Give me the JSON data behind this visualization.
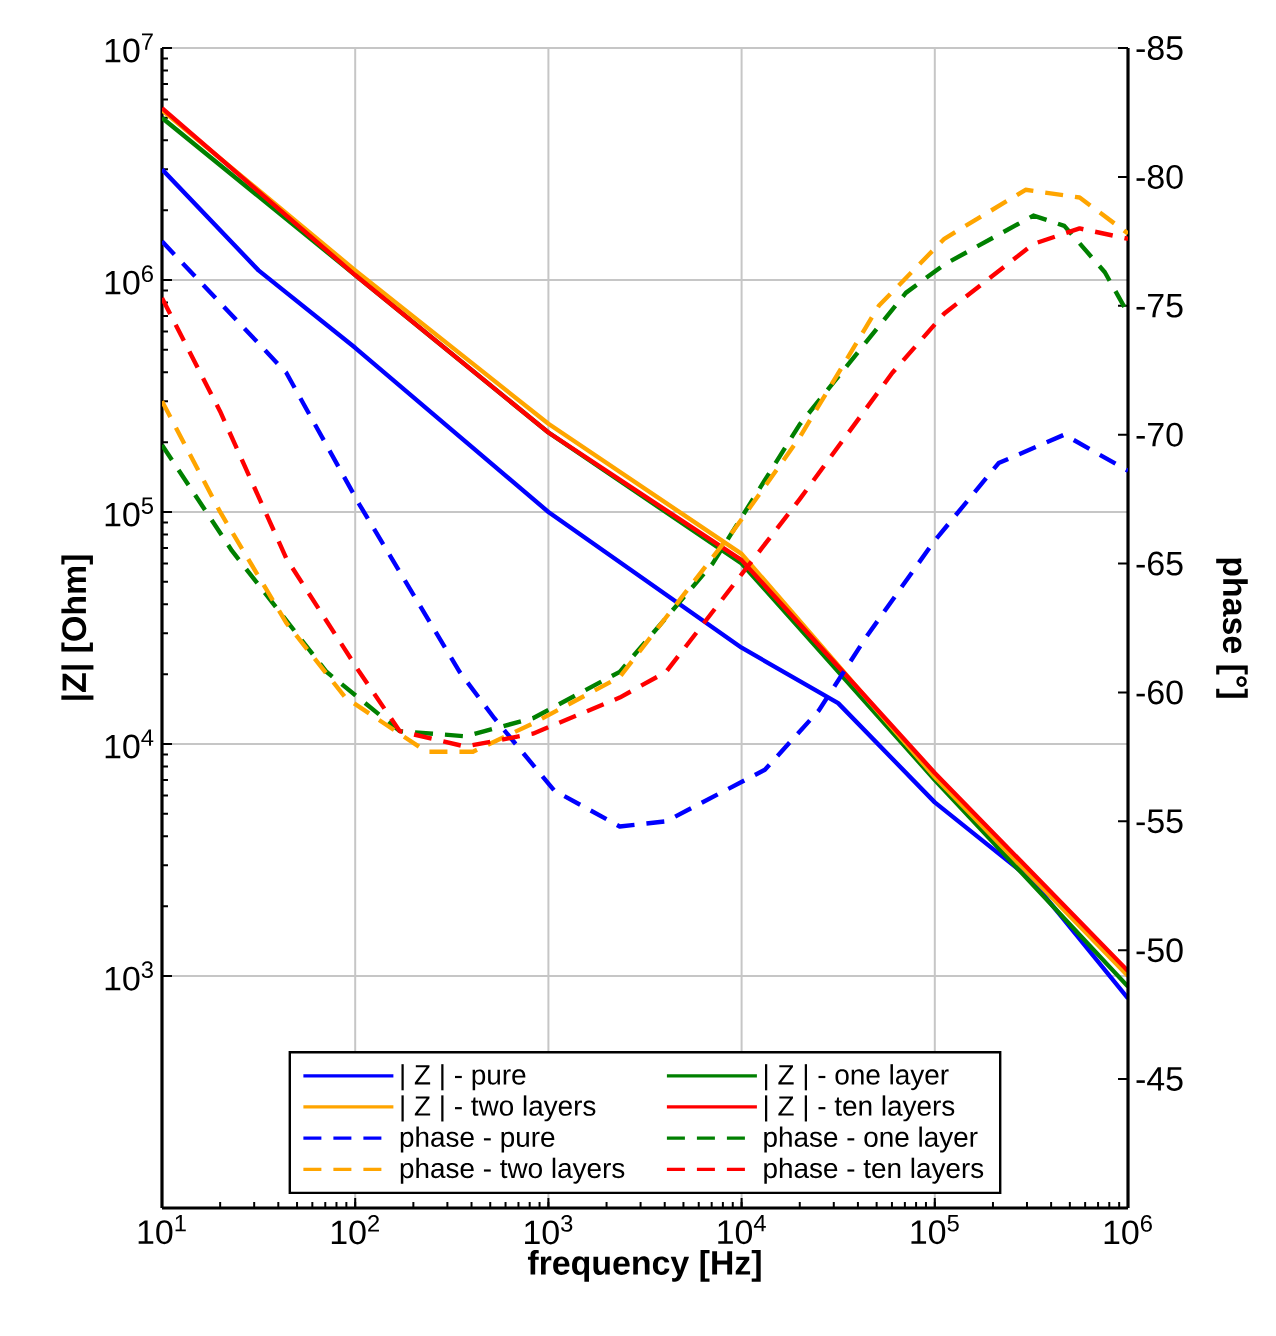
{
  "chart_data": {
    "type": "line",
    "xlabel": "frequency [Hz]",
    "ylabel": "|Z| [Ohm]",
    "y2label": "phase [°]",
    "log": "xy",
    "grid": true,
    "legend": "bottom",
    "xlim": [
      10,
      1000000
    ],
    "ylim": [
      100,
      10000000
    ],
    "y2lim": [
      -40,
      -85
    ],
    "xticks": [
      {
        "value": 10,
        "label": "10$^{1}$"
      },
      {
        "value": 100,
        "label": "10$^{2}$"
      },
      {
        "value": 1000,
        "label": "10$^{3}$"
      },
      {
        "value": 10000,
        "label": "10$^{4}$"
      },
      {
        "value": 100000,
        "label": "10$^{5}$"
      },
      {
        "value": 1000000,
        "label": "10$^{6}$"
      }
    ],
    "yticks": [
      {
        "value": 1000,
        "label": "10$^{3}$"
      },
      {
        "value": 10000,
        "label": "10$^{4}$"
      },
      {
        "value": 100000,
        "label": "10$^{5}$"
      },
      {
        "value": 1000000,
        "label": "10$^{6}$"
      },
      {
        "value": 10000000,
        "label": "10$^{7}$"
      }
    ],
    "y2ticks": [
      -85,
      -80,
      -75,
      -70,
      -65,
      -60,
      -55,
      -50,
      -45
    ],
    "series": [
      {
        "name": "| Z | - pure",
        "color": "#0000ff",
        "line_style": "solid",
        "x": [
          10,
          31.6,
          100,
          1000,
          10000,
          31600,
          100000,
          316000,
          1000000
        ],
        "values": [
          3000000,
          1100000,
          510000,
          100000,
          26000,
          15000,
          5600,
          2600,
          800
        ]
      },
      {
        "name": "| Z | - one layer",
        "color": "#008000",
        "line_style": "solid",
        "x": [
          10,
          100,
          1000,
          10000,
          100000,
          1000000
        ],
        "values": [
          5000000,
          1050000,
          220000,
          60000,
          7000,
          900
        ]
      },
      {
        "name": "| Z | - two layers",
        "color": "#ffa500",
        "line_style": "solid",
        "x": [
          10,
          100,
          1000,
          10000,
          100000,
          1000000
        ],
        "values": [
          5400000,
          1100000,
          240000,
          66000,
          7200,
          1000
        ]
      },
      {
        "name": "| Z | - ten layers",
        "color": "#ff0000",
        "line_style": "solid",
        "x": [
          10,
          100,
          1000,
          10000,
          100000,
          1000000
        ],
        "values": [
          5500000,
          1050000,
          220000,
          62000,
          7500,
          1050
        ]
      },
      {
        "name": "phase - pure",
        "color": "#0000ff",
        "line_style": "dashed",
        "axis": "y2",
        "x": [
          10,
          44,
          105,
          347,
          525,
          1070,
          2340,
          4070,
          13200,
          25100,
          43700,
          97700,
          214000,
          468000,
          1000000
        ],
        "values": [
          -77.5,
          -72.4,
          -67.3,
          -60.8,
          -59.0,
          -56.2,
          -54.8,
          -55.0,
          -57.0,
          -59.3,
          -62.1,
          -65.8,
          -68.9,
          -70.0,
          -68.6
        ]
      },
      {
        "name": "phase - one layer",
        "color": "#008000",
        "line_style": "dashed",
        "axis": "y2",
        "x": [
          10,
          23,
          71,
          170,
          372,
          832,
          2340,
          7080,
          20000,
          70800,
          112000,
          324000,
          468000,
          759000,
          1000000
        ],
        "values": [
          -69.6,
          -65.5,
          -60.8,
          -58.5,
          -58.3,
          -59.0,
          -60.8,
          -65.0,
          -70.4,
          -75.5,
          -76.6,
          -78.5,
          -78.1,
          -76.3,
          -74.7
        ]
      },
      {
        "name": "phase - two layers",
        "color": "#ffa500",
        "line_style": "dashed",
        "axis": "y2",
        "x": [
          10,
          20,
          44,
          89,
          234,
          407,
          832,
          2340,
          9120,
          20000,
          51300,
          112000,
          295000,
          562000,
          1000000
        ],
        "values": [
          -71.3,
          -67.0,
          -62.7,
          -59.8,
          -57.7,
          -57.7,
          -58.8,
          -60.6,
          -66.3,
          -69.9,
          -75.0,
          -77.6,
          -79.5,
          -79.2,
          -77.8
        ]
      },
      {
        "name": "phase - ten layers",
        "color": "#ff0000",
        "line_style": "dashed",
        "axis": "y2",
        "x": [
          10,
          20,
          44,
          105,
          170,
          372,
          832,
          2340,
          4070,
          20000,
          60300,
          112000,
          324000,
          562000,
          1000000
        ],
        "values": [
          -75.3,
          -70.9,
          -65.2,
          -60.8,
          -58.5,
          -57.9,
          -58.4,
          -59.8,
          -60.8,
          -67.5,
          -72.4,
          -74.7,
          -77.4,
          -78.0,
          -77.6
        ]
      }
    ]
  }
}
